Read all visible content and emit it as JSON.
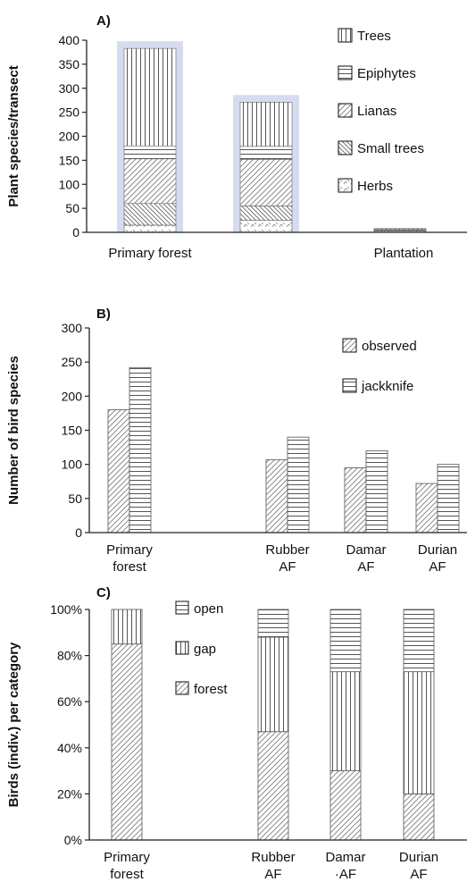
{
  "colors": {
    "ink": "#222222",
    "highlight": "#d6dcf0",
    "background": "#ffffff"
  },
  "patterns": {
    "Trees": "vertical",
    "Epiphytes": "horizontal",
    "Lianas": "diag-right",
    "Small trees": "diag-left",
    "Herbs": "herbs",
    "observed": "diag-right",
    "jackknife": "horizontal",
    "open": "horizontal",
    "gap": "vertical",
    "forest": "diag-right"
  },
  "chart_data": [
    {
      "panel": "A)",
      "type": "bar",
      "stacked": true,
      "ylabel": "Plant species/transect",
      "ylim": [
        0,
        400
      ],
      "yticks": [
        0,
        50,
        100,
        150,
        200,
        250,
        300,
        350,
        400
      ],
      "categories": [
        "Primary forest",
        "",
        "Plantation"
      ],
      "highlighted_categories": [
        0,
        1
      ],
      "series": [
        {
          "name": "Herbs",
          "values": [
            15,
            25,
            3
          ]
        },
        {
          "name": "Small trees",
          "values": [
            45,
            30,
            1
          ]
        },
        {
          "name": "Lianas",
          "values": [
            93,
            97,
            1
          ]
        },
        {
          "name": "Epiphytes",
          "values": [
            27,
            27,
            1
          ]
        },
        {
          "name": "Trees",
          "values": [
            203,
            92,
            2
          ]
        }
      ],
      "legend_position": "top-right"
    },
    {
      "panel": "B)",
      "type": "bar",
      "ylabel": "Number of bird species",
      "ylim": [
        0,
        300
      ],
      "yticks": [
        0,
        50,
        100,
        150,
        200,
        250,
        300
      ],
      "categories": [
        "Primary forest",
        "Rubber AF",
        "Damar AF",
        "Durian AF"
      ],
      "category_lines": [
        [
          "Primary",
          "forest"
        ],
        [
          "Rubber",
          "AF"
        ],
        [
          "Damar",
          "AF"
        ],
        [
          "Durian",
          "AF"
        ]
      ],
      "series": [
        {
          "name": "observed",
          "values": [
            180,
            107,
            95,
            72
          ]
        },
        {
          "name": "jackknife",
          "values": [
            242,
            140,
            120,
            100
          ]
        }
      ],
      "legend_position": "top-right"
    },
    {
      "panel": "C)",
      "type": "bar",
      "stacked": true,
      "ylabel": "Birds (indiv.) per category",
      "ylim": [
        0,
        100
      ],
      "yticks": [
        "0%",
        "20%",
        "40%",
        "60%",
        "80%",
        "100%"
      ],
      "categories": [
        "Primary forest",
        "Rubber AF",
        "Damar AF",
        "Durian AF"
      ],
      "category_lines": [
        [
          "Primary",
          "forest"
        ],
        [
          "Rubber",
          "AF"
        ],
        [
          "Damar",
          "·AF"
        ],
        [
          "Durian",
          "AF"
        ]
      ],
      "series": [
        {
          "name": "forest",
          "values": [
            85,
            47,
            30,
            20
          ]
        },
        {
          "name": "gap",
          "values": [
            15,
            41,
            43,
            53
          ]
        },
        {
          "name": "open",
          "values": [
            0,
            12,
            27,
            27
          ]
        }
      ],
      "legend_position": "top-center"
    }
  ]
}
